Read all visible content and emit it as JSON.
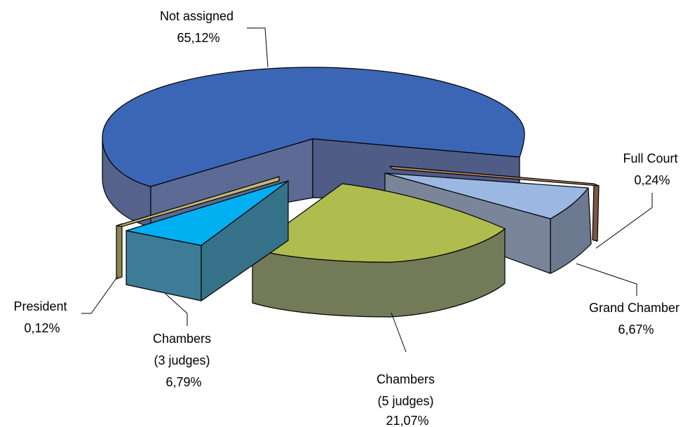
{
  "chart_data": {
    "type": "pie",
    "style": "3d-exploded",
    "title": "",
    "slices": [
      {
        "label_lines": [
          "Not assigned",
          "65,12%"
        ],
        "value": 65.12,
        "top_color": "#3B66B5",
        "side_color": "#54628C"
      },
      {
        "label_lines": [
          "Full Court",
          "0,24%"
        ],
        "value": 0.24,
        "top_color": "#B07F5E",
        "side_color": "#7C5840"
      },
      {
        "label_lines": [
          "Grand Chamber",
          "6,67%"
        ],
        "value": 6.67,
        "top_color": "#9AB8E2",
        "side_color": "#6C7A8F"
      },
      {
        "label_lines": [
          "Chambers",
          "(5 judges)",
          "21,07%"
        ],
        "value": 21.07,
        "top_color": "#AFBD4F",
        "side_color": "#737A57"
      },
      {
        "label_lines": [
          "Chambers",
          "(3 judges)",
          "6,79%"
        ],
        "value": 6.79,
        "top_color": "#00B0F0",
        "side_color": "#3D7C96"
      },
      {
        "label_lines": [
          "President",
          "0,12%"
        ],
        "value": 0.12,
        "top_color": "#BDB76E",
        "side_color": "#8A8650"
      }
    ],
    "legend": "none"
  }
}
